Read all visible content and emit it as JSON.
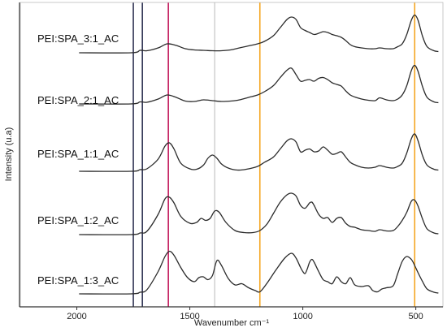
{
  "chart_data": {
    "type": "line",
    "xlabel": "Wavenumber cm⁻¹",
    "ylabel": "Intensity (u.a)",
    "xlim": [
      2250,
      380
    ],
    "x_reversed": true,
    "xticks": [
      2000,
      1500,
      1000,
      500
    ],
    "yticks_shown": false,
    "grid": false,
    "reference_lines": [
      {
        "x": 1750,
        "color": "#2e3252"
      },
      {
        "x": 1710,
        "color": "#2e3252"
      },
      {
        "x": 1595,
        "color": "#c2185b"
      },
      {
        "x": 1390,
        "color": "#c4c4c4"
      },
      {
        "x": 1190,
        "color": "#f5a623"
      },
      {
        "x": 505,
        "color": "#f5a623"
      }
    ],
    "series": [
      {
        "name": "PEI:SPA_3:1_AC",
        "x": [
          1990,
          1760,
          1720,
          1690,
          1640,
          1600,
          1560,
          1520,
          1480,
          1440,
          1400,
          1360,
          1320,
          1280,
          1240,
          1200,
          1170,
          1130,
          1100,
          1070,
          1050,
          1030,
          1010,
          990,
          970,
          950,
          930,
          910,
          890,
          870,
          850,
          830,
          810,
          790,
          770,
          740,
          710,
          680,
          660,
          630,
          600,
          580,
          560,
          540,
          520,
          505,
          490,
          470,
          450,
          420,
          400
        ],
        "y": [
          0.0,
          0.0,
          0.06,
          0.05,
          0.12,
          0.22,
          0.18,
          0.1,
          0.07,
          0.06,
          0.05,
          0.05,
          0.07,
          0.12,
          0.17,
          0.22,
          0.28,
          0.42,
          0.62,
          0.82,
          0.88,
          0.82,
          0.62,
          0.55,
          0.5,
          0.45,
          0.48,
          0.52,
          0.5,
          0.45,
          0.42,
          0.38,
          0.3,
          0.2,
          0.15,
          0.12,
          0.1,
          0.1,
          0.12,
          0.1,
          0.1,
          0.15,
          0.22,
          0.45,
          0.8,
          0.93,
          0.8,
          0.4,
          0.15,
          0.05,
          0.03
        ]
      },
      {
        "name": "PEI:SPA_2:1_AC",
        "x": [
          1990,
          1760,
          1720,
          1690,
          1640,
          1600,
          1560,
          1520,
          1480,
          1440,
          1400,
          1360,
          1320,
          1280,
          1240,
          1200,
          1170,
          1130,
          1100,
          1070,
          1050,
          1030,
          1010,
          990,
          970,
          950,
          930,
          910,
          890,
          870,
          850,
          830,
          810,
          790,
          770,
          740,
          710,
          680,
          660,
          630,
          600,
          580,
          560,
          540,
          520,
          505,
          490,
          470,
          450,
          420,
          400
        ],
        "y": [
          0.0,
          0.0,
          0.05,
          0.04,
          0.12,
          0.22,
          0.16,
          0.07,
          0.06,
          0.1,
          0.08,
          0.06,
          0.07,
          0.1,
          0.16,
          0.22,
          0.3,
          0.45,
          0.65,
          0.83,
          0.88,
          0.72,
          0.56,
          0.58,
          0.6,
          0.56,
          0.63,
          0.65,
          0.6,
          0.52,
          0.48,
          0.44,
          0.32,
          0.22,
          0.17,
          0.12,
          0.09,
          0.08,
          0.15,
          0.1,
          0.08,
          0.12,
          0.22,
          0.45,
          0.82,
          0.95,
          0.8,
          0.42,
          0.16,
          0.05,
          0.03
        ]
      },
      {
        "name": "PEI:SPA_1:1_AC",
        "x": [
          1990,
          1760,
          1720,
          1690,
          1640,
          1610,
          1590,
          1570,
          1540,
          1500,
          1470,
          1440,
          1420,
          1400,
          1380,
          1360,
          1330,
          1290,
          1250,
          1200,
          1170,
          1130,
          1100,
          1070,
          1050,
          1030,
          1010,
          990,
          970,
          950,
          930,
          910,
          890,
          870,
          850,
          830,
          810,
          790,
          770,
          740,
          710,
          680,
          660,
          630,
          600,
          580,
          560,
          540,
          520,
          505,
          490,
          470,
          450,
          420,
          400
        ],
        "y": [
          0.0,
          0.0,
          0.04,
          0.06,
          0.3,
          0.62,
          0.7,
          0.55,
          0.2,
          0.06,
          0.05,
          0.15,
          0.32,
          0.4,
          0.32,
          0.18,
          0.08,
          0.03,
          0.05,
          0.12,
          0.22,
          0.35,
          0.55,
          0.75,
          0.8,
          0.72,
          0.48,
          0.52,
          0.55,
          0.48,
          0.5,
          0.6,
          0.52,
          0.42,
          0.44,
          0.48,
          0.35,
          0.22,
          0.16,
          0.1,
          0.08,
          0.1,
          0.14,
          0.1,
          0.08,
          0.12,
          0.2,
          0.45,
          0.8,
          0.92,
          0.75,
          0.38,
          0.15,
          0.05,
          0.03
        ]
      },
      {
        "name": "PEI:SPA_1:2_AC",
        "x": [
          1990,
          1760,
          1720,
          1690,
          1640,
          1610,
          1590,
          1570,
          1540,
          1500,
          1470,
          1450,
          1430,
          1410,
          1390,
          1370,
          1340,
          1300,
          1260,
          1220,
          1190,
          1160,
          1130,
          1100,
          1070,
          1050,
          1030,
          1010,
          990,
          970,
          960,
          950,
          930,
          910,
          890,
          870,
          850,
          830,
          810,
          790,
          770,
          740,
          710,
          680,
          660,
          630,
          600,
          580,
          560,
          540,
          520,
          505,
          490,
          470,
          450,
          420,
          400
        ],
        "y": [
          0.0,
          0.0,
          0.04,
          0.08,
          0.5,
          0.88,
          0.92,
          0.78,
          0.45,
          0.28,
          0.3,
          0.4,
          0.35,
          0.4,
          0.58,
          0.55,
          0.3,
          0.1,
          0.05,
          0.05,
          0.1,
          0.25,
          0.52,
          0.8,
          0.98,
          1.02,
          0.95,
          0.72,
          0.65,
          0.78,
          0.8,
          0.72,
          0.5,
          0.4,
          0.42,
          0.3,
          0.4,
          0.42,
          0.28,
          0.2,
          0.18,
          0.12,
          0.1,
          0.08,
          0.12,
          0.09,
          0.1,
          0.2,
          0.35,
          0.55,
          0.82,
          0.85,
          0.7,
          0.38,
          0.14,
          0.04,
          0.02
        ]
      },
      {
        "name": "PEI:SPA_1:3_AC",
        "x": [
          1990,
          1760,
          1720,
          1690,
          1640,
          1610,
          1590,
          1570,
          1540,
          1510,
          1480,
          1460,
          1440,
          1420,
          1400,
          1380,
          1360,
          1330,
          1300,
          1270,
          1240,
          1210,
          1190,
          1160,
          1120,
          1080,
          1050,
          1030,
          1010,
          1000,
          990,
          980,
          970,
          960,
          950,
          930,
          910,
          890,
          870,
          850,
          830,
          810,
          790,
          770,
          740,
          710,
          690,
          670,
          650,
          630,
          600,
          580,
          560,
          540,
          520,
          505,
          490,
          470,
          450,
          420,
          400
        ],
        "y": [
          0.0,
          0.0,
          0.04,
          0.1,
          0.55,
          0.92,
          1.05,
          0.95,
          0.65,
          0.4,
          0.3,
          0.4,
          0.42,
          0.35,
          0.45,
          0.82,
          0.7,
          0.38,
          0.22,
          0.25,
          0.15,
          0.08,
          0.05,
          0.25,
          0.58,
          0.88,
          1.0,
          0.88,
          0.65,
          0.55,
          0.5,
          0.62,
          0.78,
          0.85,
          0.78,
          0.55,
          0.35,
          0.3,
          0.25,
          0.42,
          0.3,
          0.25,
          0.4,
          0.22,
          0.18,
          0.2,
          0.08,
          0.05,
          0.12,
          0.15,
          0.2,
          0.5,
          0.8,
          0.92,
          0.85,
          0.7,
          0.52,
          0.3,
          0.12,
          0.04,
          0.02
        ]
      }
    ]
  }
}
